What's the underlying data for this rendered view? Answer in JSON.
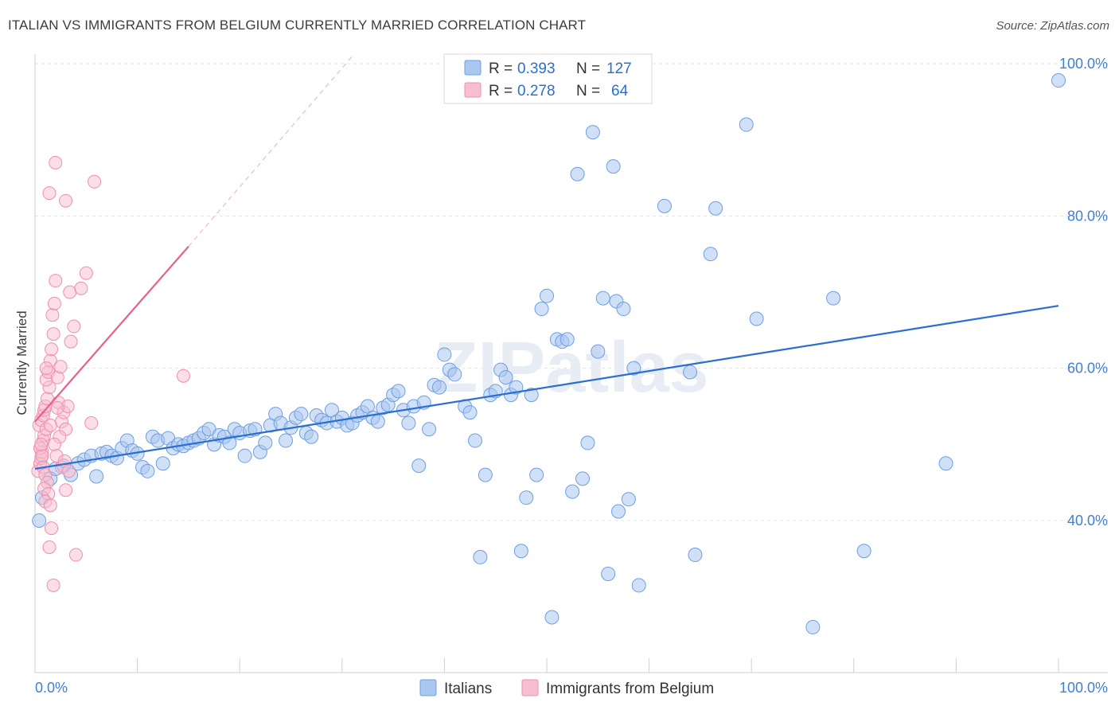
{
  "chart_data": {
    "type": "scatter",
    "title": "ITALIAN VS IMMIGRANTS FROM BELGIUM CURRENTLY MARRIED CORRELATION CHART",
    "source": "Source: ZipAtlas.com",
    "xlabel": "",
    "ylabel": "Currently Married",
    "x_tick_labels": [
      "0.0%",
      "100.0%"
    ],
    "y_tick_labels": [
      "40.0%",
      "60.0%",
      "80.0%",
      "100.0%"
    ],
    "y_ticks": [
      40,
      60,
      80,
      100
    ],
    "xlim": [
      0,
      100
    ],
    "ylim": [
      20,
      101
    ],
    "grid": true,
    "watermark": "ZIPatlas",
    "colors": {
      "italians_fill": "#a9c7ef",
      "italians_stroke": "#6f9fe0",
      "italians_line": "#2a6fd0",
      "belgium_fill": "#f7bdd0",
      "belgium_stroke": "#ee8fb0",
      "belgium_line": "#e8608e",
      "tick_label": "#3f7fd6",
      "grid": "#e3e3e3"
    },
    "legend": {
      "entries": [
        {
          "r_label": "R = ",
          "r_value": "0.393",
          "n_label": "N = ",
          "n_value": "127"
        },
        {
          "r_label": "R = ",
          "r_value": "0.278",
          "n_label": "N = ",
          "n_value": "64"
        }
      ]
    },
    "series": [
      {
        "name": "Italians",
        "trend": {
          "x0": 0,
          "y0": 46.8,
          "x1": 100,
          "y1": 68.2
        },
        "points": [
          [
            0.4,
            40.0
          ],
          [
            0.7,
            43.0
          ],
          [
            1.5,
            45.5
          ],
          [
            2.0,
            46.8
          ],
          [
            2.8,
            47.2
          ],
          [
            3.5,
            46.0
          ],
          [
            4.2,
            47.5
          ],
          [
            4.8,
            48.0
          ],
          [
            5.5,
            48.5
          ],
          [
            6.0,
            45.8
          ],
          [
            6.5,
            48.8
          ],
          [
            7.0,
            49.0
          ],
          [
            7.5,
            48.5
          ],
          [
            8.0,
            48.2
          ],
          [
            8.5,
            49.5
          ],
          [
            9.0,
            50.5
          ],
          [
            9.5,
            49.2
          ],
          [
            10.0,
            48.8
          ],
          [
            10.5,
            47.0
          ],
          [
            11.0,
            46.5
          ],
          [
            11.5,
            51.0
          ],
          [
            12.0,
            50.5
          ],
          [
            12.5,
            47.5
          ],
          [
            13.0,
            50.8
          ],
          [
            13.5,
            49.5
          ],
          [
            14.0,
            50.0
          ],
          [
            14.5,
            49.8
          ],
          [
            15.0,
            50.2
          ],
          [
            15.5,
            50.5
          ],
          [
            16.0,
            50.8
          ],
          [
            16.5,
            51.5
          ],
          [
            17.0,
            52.0
          ],
          [
            17.5,
            50.0
          ],
          [
            18.0,
            51.2
          ],
          [
            18.5,
            51.0
          ],
          [
            19.0,
            50.2
          ],
          [
            19.5,
            52.0
          ],
          [
            20.0,
            51.5
          ],
          [
            20.5,
            48.5
          ],
          [
            21.0,
            51.8
          ],
          [
            21.5,
            52.0
          ],
          [
            22.0,
            49.0
          ],
          [
            22.5,
            50.2
          ],
          [
            23.0,
            52.5
          ],
          [
            23.5,
            54.0
          ],
          [
            24.0,
            52.8
          ],
          [
            24.5,
            50.5
          ],
          [
            25.0,
            52.2
          ],
          [
            25.5,
            53.5
          ],
          [
            26.0,
            54.0
          ],
          [
            26.5,
            51.5
          ],
          [
            27.0,
            51.0
          ],
          [
            27.5,
            53.8
          ],
          [
            28.0,
            53.2
          ],
          [
            28.5,
            52.8
          ],
          [
            29.0,
            54.5
          ],
          [
            29.5,
            53.0
          ],
          [
            30.0,
            53.5
          ],
          [
            30.5,
            52.5
          ],
          [
            31.0,
            52.8
          ],
          [
            31.5,
            53.8
          ],
          [
            32.0,
            54.2
          ],
          [
            32.5,
            55.0
          ],
          [
            33.0,
            53.5
          ],
          [
            33.5,
            53.0
          ],
          [
            34.0,
            54.8
          ],
          [
            34.5,
            55.2
          ],
          [
            35.0,
            56.5
          ],
          [
            35.5,
            57.0
          ],
          [
            36.0,
            54.5
          ],
          [
            36.5,
            52.8
          ],
          [
            37.0,
            55.0
          ],
          [
            37.5,
            47.2
          ],
          [
            38.0,
            55.5
          ],
          [
            38.5,
            52.0
          ],
          [
            39.0,
            57.8
          ],
          [
            39.5,
            57.5
          ],
          [
            40.0,
            61.8
          ],
          [
            40.5,
            59.8
          ],
          [
            41.0,
            59.2
          ],
          [
            42.0,
            55.0
          ],
          [
            42.5,
            54.2
          ],
          [
            43.0,
            50.5
          ],
          [
            43.5,
            35.2
          ],
          [
            44.0,
            46.0
          ],
          [
            44.5,
            56.5
          ],
          [
            45.0,
            57.0
          ],
          [
            45.5,
            59.8
          ],
          [
            46.0,
            58.8
          ],
          [
            46.5,
            56.5
          ],
          [
            47.0,
            57.5
          ],
          [
            47.5,
            36.0
          ],
          [
            48.0,
            43.0
          ],
          [
            48.5,
            56.5
          ],
          [
            49.0,
            46.0
          ],
          [
            49.5,
            67.8
          ],
          [
            50.0,
            69.5
          ],
          [
            50.5,
            27.3
          ],
          [
            51.0,
            63.8
          ],
          [
            51.5,
            63.5
          ],
          [
            52.0,
            63.8
          ],
          [
            52.5,
            43.8
          ],
          [
            53.0,
            85.5
          ],
          [
            53.5,
            45.5
          ],
          [
            54.0,
            50.2
          ],
          [
            54.5,
            91.0
          ],
          [
            55.0,
            62.2
          ],
          [
            55.5,
            69.2
          ],
          [
            56.0,
            33.0
          ],
          [
            56.5,
            86.5
          ],
          [
            56.8,
            68.8
          ],
          [
            57.0,
            41.2
          ],
          [
            57.5,
            67.8
          ],
          [
            58.0,
            42.8
          ],
          [
            58.5,
            60.0
          ],
          [
            59.0,
            31.5
          ],
          [
            61.5,
            81.3
          ],
          [
            64.0,
            59.5
          ],
          [
            64.5,
            35.5
          ],
          [
            66.0,
            75.0
          ],
          [
            66.5,
            81.0
          ],
          [
            69.5,
            92.0
          ],
          [
            70.5,
            66.5
          ],
          [
            76.0,
            26.0
          ],
          [
            78.0,
            69.2
          ],
          [
            81.0,
            36.0
          ],
          [
            89.0,
            47.5
          ],
          [
            100.0,
            97.8
          ]
        ]
      },
      {
        "name": "Immigrants from Belgium",
        "trend": {
          "x0": 0,
          "y0": 53.0,
          "x1": 15,
          "y1": 76.0
        },
        "trend_dashed_to": {
          "x": 31,
          "y": 101.0
        },
        "points": [
          [
            0.3,
            46.5
          ],
          [
            0.5,
            47.5
          ],
          [
            0.6,
            48.2
          ],
          [
            0.7,
            49.0
          ],
          [
            0.8,
            50.5
          ],
          [
            0.9,
            51.2
          ],
          [
            0.4,
            52.5
          ],
          [
            0.6,
            53.2
          ],
          [
            0.8,
            53.8
          ],
          [
            0.9,
            54.5
          ],
          [
            1.0,
            55.0
          ],
          [
            1.1,
            52.0
          ],
          [
            0.5,
            49.5
          ],
          [
            0.7,
            48.5
          ],
          [
            0.8,
            47.0
          ],
          [
            1.0,
            46.0
          ],
          [
            1.2,
            45.0
          ],
          [
            0.9,
            44.2
          ],
          [
            1.3,
            43.5
          ],
          [
            1.0,
            42.5
          ],
          [
            1.5,
            42.0
          ],
          [
            1.6,
            39.0
          ],
          [
            1.4,
            36.5
          ],
          [
            1.8,
            31.5
          ],
          [
            1.2,
            56.0
          ],
          [
            1.4,
            57.5
          ],
          [
            1.1,
            58.5
          ],
          [
            1.3,
            59.5
          ],
          [
            1.5,
            61.0
          ],
          [
            1.6,
            62.5
          ],
          [
            1.8,
            64.5
          ],
          [
            1.7,
            67.0
          ],
          [
            1.9,
            68.5
          ],
          [
            2.0,
            71.5
          ],
          [
            2.2,
            58.8
          ],
          [
            2.5,
            60.2
          ],
          [
            2.3,
            55.5
          ],
          [
            2.6,
            53.0
          ],
          [
            2.8,
            54.2
          ],
          [
            3.0,
            52.0
          ],
          [
            3.2,
            55.0
          ],
          [
            2.4,
            51.0
          ],
          [
            1.5,
            52.5
          ],
          [
            1.9,
            50.0
          ],
          [
            2.1,
            48.5
          ],
          [
            2.6,
            47.0
          ],
          [
            2.9,
            47.8
          ],
          [
            3.3,
            46.5
          ],
          [
            3.0,
            44.0
          ],
          [
            3.5,
            63.5
          ],
          [
            3.8,
            65.5
          ],
          [
            3.4,
            70.0
          ],
          [
            4.5,
            70.5
          ],
          [
            5.0,
            72.5
          ],
          [
            1.4,
            83.0
          ],
          [
            2.0,
            87.0
          ],
          [
            3.0,
            82.0
          ],
          [
            5.8,
            84.5
          ],
          [
            5.5,
            52.8
          ],
          [
            1.1,
            60.0
          ],
          [
            4.0,
            35.5
          ],
          [
            14.5,
            59.0
          ],
          [
            2.2,
            54.8
          ],
          [
            0.6,
            50.0
          ]
        ]
      }
    ]
  }
}
